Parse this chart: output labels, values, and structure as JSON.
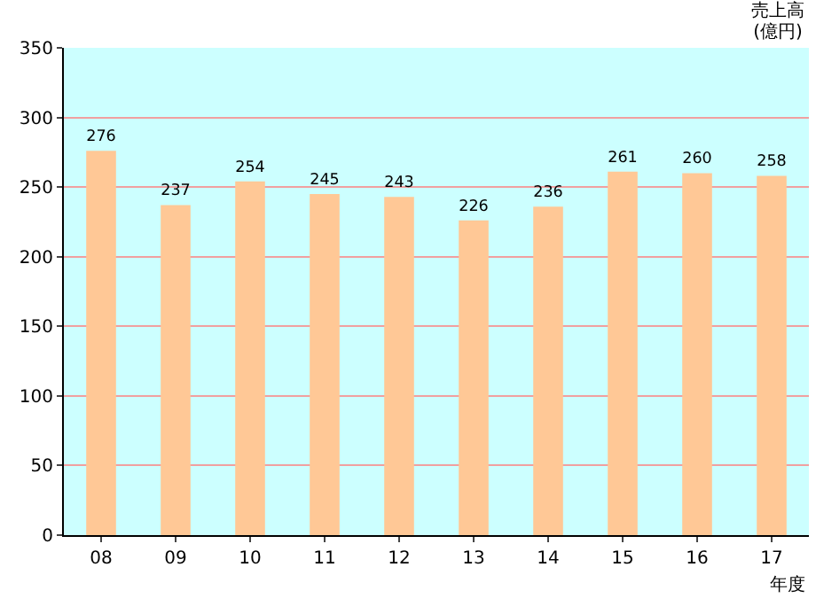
{
  "chart_data": {
    "type": "bar",
    "ylabel": "売上高(億円)",
    "xlabel": "年度",
    "categories": [
      "08",
      "09",
      "10",
      "11",
      "12",
      "13",
      "14",
      "15",
      "16",
      "17"
    ],
    "values": [
      276,
      237,
      254,
      245,
      243,
      226,
      236,
      261,
      260,
      258
    ],
    "color": "#ffc896",
    "ylim": [
      0,
      350
    ],
    "yticks": [
      0,
      50,
      100,
      150,
      200,
      250,
      300,
      350
    ],
    "grid": "y",
    "data_labels": true
  }
}
